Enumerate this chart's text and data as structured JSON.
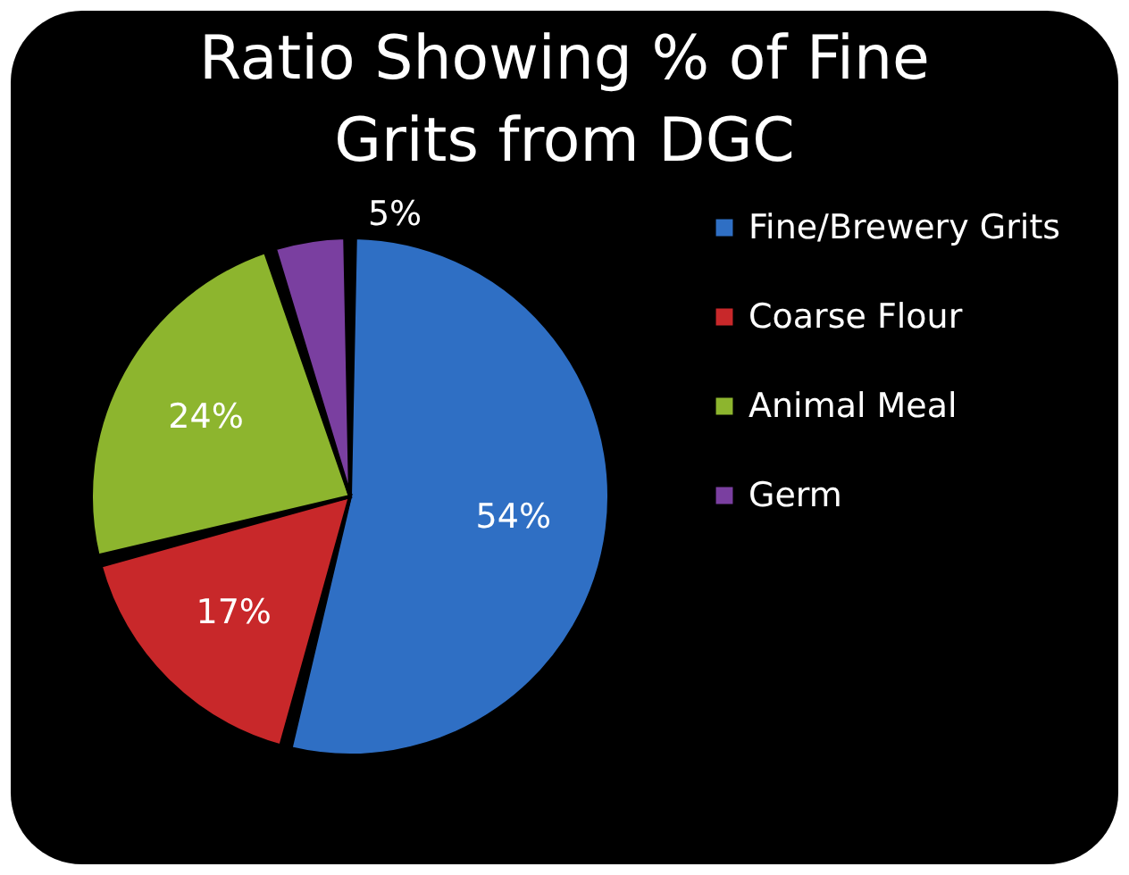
{
  "chart_data": {
    "type": "pie",
    "title": "Ratio Showing % of Fine Grits from DGC",
    "categories": [
      "Fine/Brewery Grits",
      "Coarse Flour",
      "Animal Meal",
      "Germ"
    ],
    "values": [
      54,
      17,
      24,
      5
    ],
    "colors": [
      "#2f6fc4",
      "#c8282a",
      "#8db52e",
      "#7a3fa0"
    ],
    "value_labels": [
      "54%",
      "17%",
      "24%",
      "5%"
    ],
    "legend": "right"
  }
}
